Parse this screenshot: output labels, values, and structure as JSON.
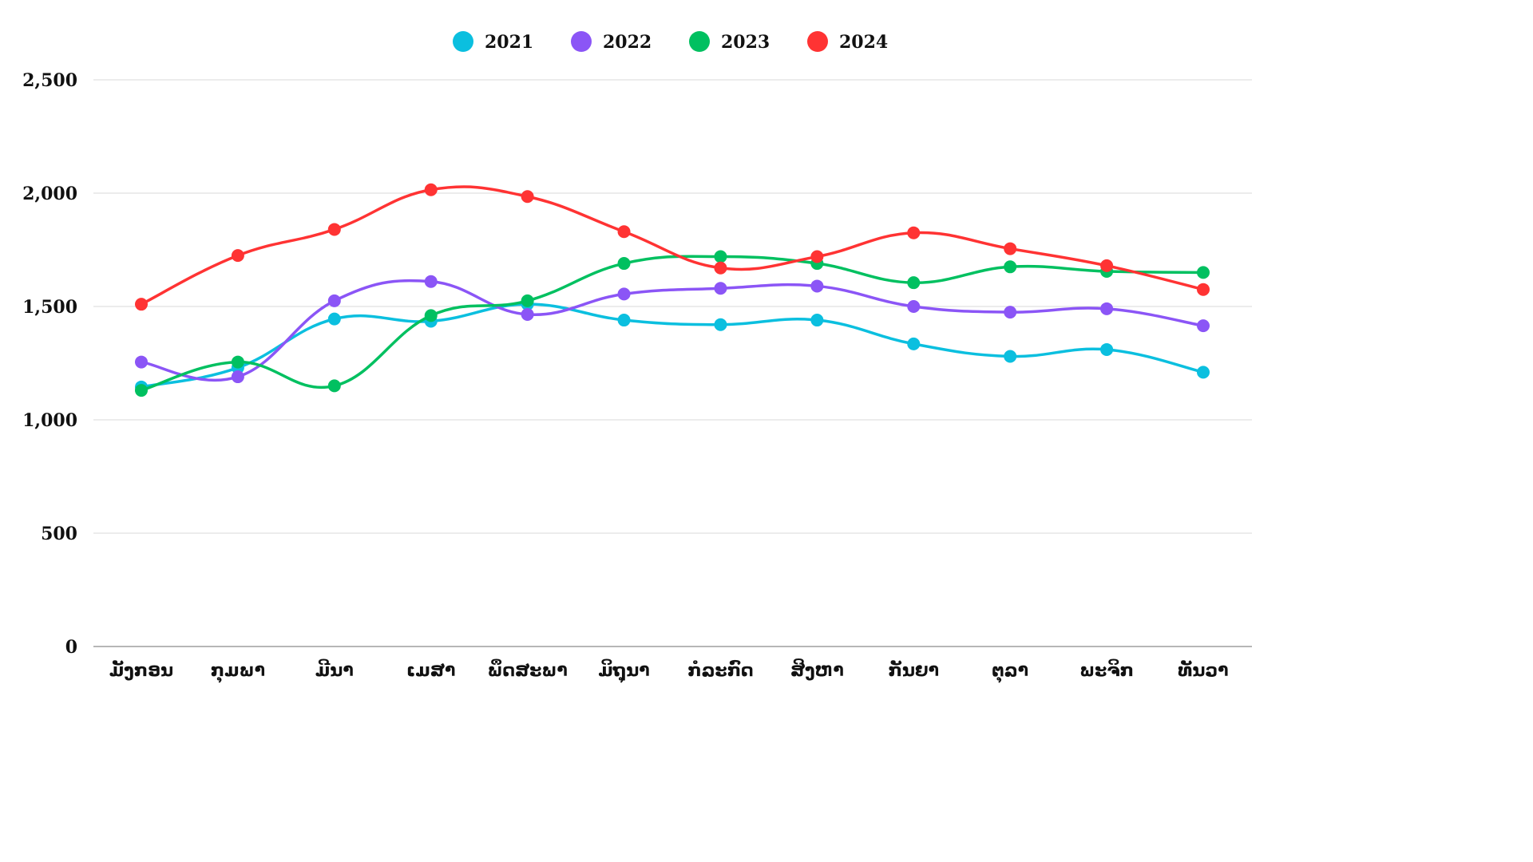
{
  "chart_data": {
    "type": "line",
    "categories": [
      "ມັງກອນ",
      "ກຸມພາ",
      "ມີນາ",
      "ເມສາ",
      "ພຶດສະພາ",
      "ມິຖຸນາ",
      "ກໍລະກົດ",
      "ສິງຫາ",
      "ກັນຍາ",
      "ຕຸລາ",
      "ພະຈິກ",
      "ທັນວາ"
    ],
    "series": [
      {
        "name": "2021",
        "color": "#0bbfdf",
        "values": [
          1145,
          1230,
          1445,
          1435,
          1510,
          1440,
          1420,
          1440,
          1335,
          1280,
          1310,
          1210
        ]
      },
      {
        "name": "2022",
        "color": "#8b55f6",
        "values": [
          1255,
          1190,
          1525,
          1610,
          1465,
          1555,
          1580,
          1590,
          1500,
          1475,
          1490,
          1415
        ]
      },
      {
        "name": "2023",
        "color": "#00c060",
        "values": [
          1130,
          1255,
          1150,
          1460,
          1525,
          1690,
          1720,
          1690,
          1605,
          1675,
          1655,
          1650
        ]
      },
      {
        "name": "2024",
        "color": "#ff3333",
        "values": [
          1510,
          1725,
          1840,
          2015,
          1985,
          1830,
          1670,
          1720,
          1825,
          1755,
          1680,
          1575
        ]
      }
    ],
    "yticks": [
      "0",
      "500",
      "1,000",
      "1,500",
      "2,000",
      "2,500"
    ],
    "ylim": [
      0,
      2500
    ],
    "grid": true,
    "legend": "top-center"
  }
}
